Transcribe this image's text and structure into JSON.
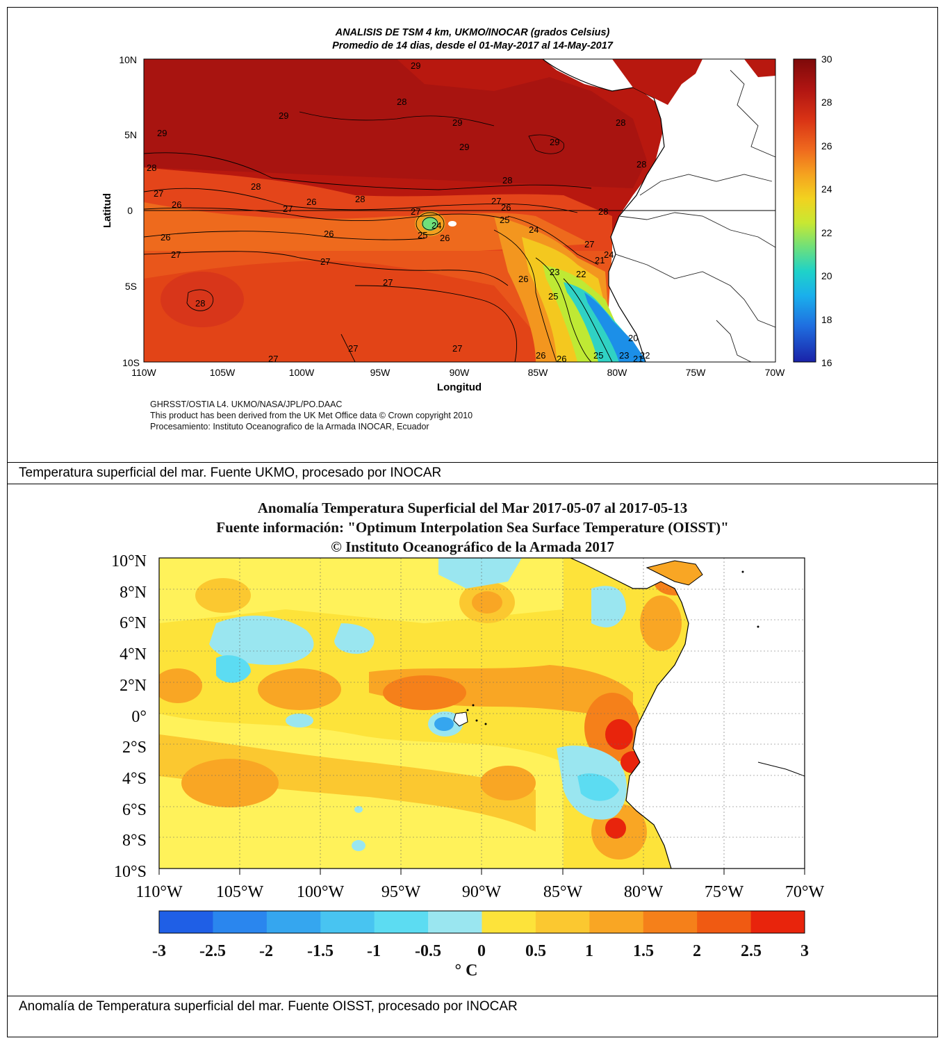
{
  "panel1": {
    "title_line1": "ANALISIS DE TSM 4 km, UKMO/INOCAR (grados Celsius)",
    "title_line2": "Promedio de 14 dias, desde el 01-May-2017 al 14-May-2017",
    "xlabel": "Longitud",
    "ylabel": "Latitud",
    "lon_ticks": [
      "110W",
      "105W",
      "100W",
      "95W",
      "90W",
      "85W",
      "80W",
      "75W",
      "70W"
    ],
    "lat_ticks": [
      "10N",
      "5N",
      "0",
      "5S",
      "10S"
    ],
    "colorbar_ticks": [
      "30",
      "28",
      "26",
      "24",
      "22",
      "20",
      "18",
      "16"
    ],
    "source_line1": "GHRSST/OSTIA L4. UKMO/NASA/JPL/PO.DAAC",
    "source_line2": "This product has been derived from the UK Met Office data © Crown copyright 2010",
    "source_line3": "Procesamiento: Instituto Oceanografico de la Armada INOCAR, Ecuador",
    "contour_labels": [
      "29",
      "29",
      "28",
      "29",
      "29",
      "28",
      "29",
      "29",
      "28",
      "28",
      "27",
      "26",
      "28",
      "27",
      "26",
      "28",
      "28",
      "27",
      "26",
      "26",
      "26",
      "25",
      "24",
      "27",
      "26",
      "27",
      "27",
      "25",
      "24",
      "26",
      "25",
      "23",
      "22",
      "21",
      "26",
      "24",
      "23",
      "20",
      "21",
      "22",
      "25",
      "26",
      "26",
      "27",
      "27",
      "28",
      "27",
      "27",
      "28",
      "27",
      "29",
      "28"
    ],
    "colormap": [
      "#7e0a0a",
      "#a01010",
      "#c11a10",
      "#d93315",
      "#e8541b",
      "#f07a20",
      "#f5a21f",
      "#f6c61f",
      "#e6e228",
      "#b8ea3a",
      "#6fe07a",
      "#2fd6b4",
      "#1bc4e0",
      "#1c9ce8",
      "#1f6fe0",
      "#2040c8",
      "#1a22a8"
    ]
  },
  "caption1": "Temperatura superficial del mar. Fuente UKMO, procesado por INOCAR",
  "panel2": {
    "title_line1": "Anomalía Temperatura Superficial del Mar 2017-05-07 al 2017-05-13",
    "title_line2": "Fuente información: \"Optimum Interpolation Sea Surface Temperature (OISST)\"",
    "title_line3": "© Instituto Oceanográfico de la Armada 2017",
    "lat_ticks": [
      "10°N",
      "8°N",
      "6°N",
      "4°N",
      "2°N",
      "0°",
      "2°S",
      "4°S",
      "6°S",
      "8°S",
      "10°S"
    ],
    "lon_ticks": [
      "110°W",
      "105°W",
      "100°W",
      "95°W",
      "90°W",
      "85°W",
      "80°W",
      "75°W",
      "70°W"
    ],
    "colorbar_ticks": [
      "-3",
      "-2.5",
      "-2",
      "-1.5",
      "-1",
      "-0.5",
      "0",
      "0.5",
      "1",
      "1.5",
      "2",
      "2.5",
      "3"
    ],
    "colorbar_unit": "° C",
    "colorbar_colors": [
      "#1f5fe6",
      "#2a86ee",
      "#35a6ef",
      "#48c4f1",
      "#5cdcf2",
      "#9ae6f0",
      "#fff55a",
      "#fde33a",
      "#fbc830",
      "#f9a624",
      "#f5801a",
      "#f05a12",
      "#e8240c"
    ]
  },
  "caption2": "Anomalía de Temperatura superficial del mar. Fuente OISST, procesado por INOCAR"
}
